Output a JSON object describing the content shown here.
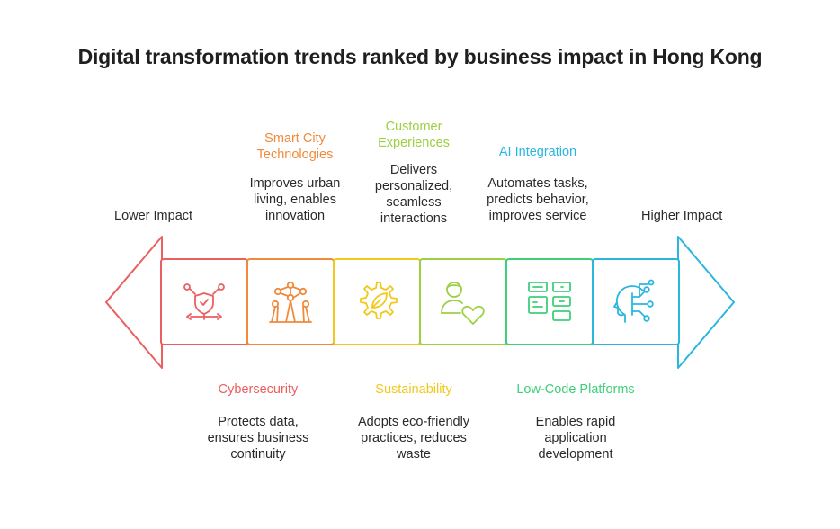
{
  "title": "Digital transformation trends ranked by business impact in Hong Kong",
  "left_label": "Lower Impact",
  "right_label": "Higher Impact",
  "segments": [
    {
      "label": "Cybersecurity",
      "desc": "Protects data,\nensures business\ncontinuity",
      "color": "#ec5f5f",
      "icon": "shield-network-icon"
    },
    {
      "label": "Smart City\nTechnologies",
      "desc": "Improves urban\nliving, enables\ninnovation",
      "color": "#f08a3c",
      "icon": "city-network-icon"
    },
    {
      "label": "Sustainability",
      "desc": "Adopts eco-friendly\npractices, reduces\nwaste",
      "color": "#f2c81e",
      "icon": "gear-leaf-icon"
    },
    {
      "label": "Customer\nExperiences",
      "desc": "Delivers\npersonalized,\nseamless\ninteractions",
      "color": "#9bd040",
      "icon": "person-heart-icon"
    },
    {
      "label": "Low-Code Platforms",
      "desc": "Enables rapid\napplication\ndevelopment",
      "color": "#3fcf7a",
      "icon": "app-blocks-icon"
    },
    {
      "label": "AI Integration",
      "desc": "Automates tasks,\npredicts behavior,\nimproves service",
      "color": "#2bb6e0",
      "icon": "ai-head-icon"
    }
  ]
}
